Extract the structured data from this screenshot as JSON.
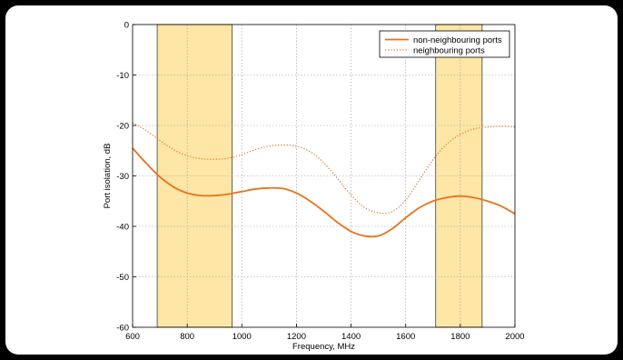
{
  "chart_data": {
    "type": "line",
    "xlabel": "Frequency, MHz",
    "ylabel": "Port isolation, dB",
    "xlim": [
      600,
      2000
    ],
    "ylim": [
      -60,
      0
    ],
    "xticks": [
      "600",
      "800",
      "1000",
      "1200",
      "1400",
      "1600",
      "1800",
      "2000"
    ],
    "yticks": [
      "0",
      "-10",
      "-20",
      "-30",
      "-40",
      "-50",
      "-60"
    ],
    "grid": true,
    "legend_position": "top-right",
    "highlight_bands": [
      {
        "from": 690,
        "to": 965,
        "color": "#fde6a6"
      },
      {
        "from": 1710,
        "to": 1880,
        "color": "#fde6a6"
      }
    ],
    "series": [
      {
        "name": "non-neighbouring ports",
        "style": "solid",
        "color": "#e8731a",
        "x": [
          600,
          650,
          700,
          750,
          800,
          850,
          900,
          950,
          1000,
          1050,
          1100,
          1150,
          1200,
          1250,
          1300,
          1350,
          1400,
          1450,
          1500,
          1550,
          1600,
          1650,
          1700,
          1750,
          1800,
          1850,
          1900,
          1950,
          2000
        ],
        "y": [
          -24.5,
          -27.5,
          -30.2,
          -32.2,
          -33.4,
          -33.9,
          -33.9,
          -33.6,
          -33.1,
          -32.6,
          -32.4,
          -32.5,
          -33.4,
          -35.0,
          -37.0,
          -39.2,
          -41.0,
          -41.9,
          -41.9,
          -40.5,
          -38.3,
          -36.3,
          -35.0,
          -34.3,
          -34.0,
          -34.3,
          -35.0,
          -36.0,
          -37.5
        ]
      },
      {
        "name": "neighbouring ports",
        "style": "dotted",
        "color": "#e8731a",
        "x": [
          600,
          650,
          700,
          750,
          800,
          850,
          900,
          950,
          1000,
          1050,
          1100,
          1150,
          1200,
          1250,
          1300,
          1350,
          1400,
          1450,
          1500,
          1550,
          1600,
          1650,
          1700,
          1750,
          1800,
          1850,
          1900,
          1950,
          2000
        ],
        "y": [
          -19.5,
          -21.0,
          -23.0,
          -24.8,
          -26.0,
          -26.6,
          -26.7,
          -26.5,
          -25.8,
          -24.8,
          -24.1,
          -23.9,
          -24.1,
          -25.2,
          -27.4,
          -30.5,
          -33.8,
          -36.3,
          -37.3,
          -37.1,
          -34.8,
          -30.8,
          -26.8,
          -23.7,
          -21.8,
          -20.7,
          -20.3,
          -20.2,
          -20.3
        ]
      }
    ]
  }
}
